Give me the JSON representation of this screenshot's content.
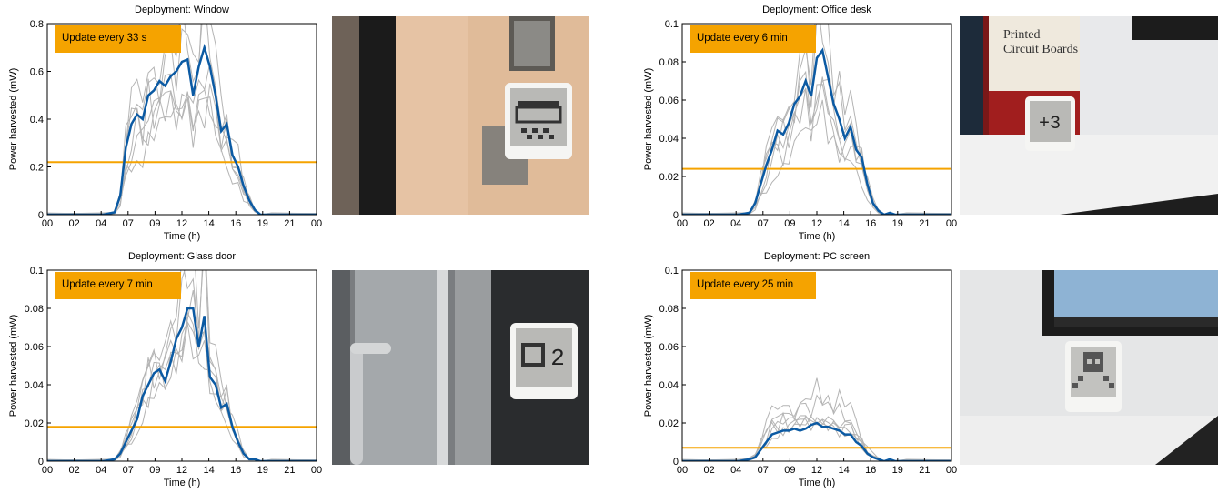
{
  "colors": {
    "mean": "#0b5aa3",
    "thin": "#b4b4b4",
    "threshold": "#f5a300",
    "box": "#f5a300"
  },
  "chart_data": [
    {
      "type": "line",
      "title": "Deployment: Window",
      "xlabel": "Time (h)",
      "ylabel": "Power harvested (mW)",
      "xlim": [
        0,
        24
      ],
      "ylim": [
        0,
        0.8
      ],
      "xticklabels": [
        "00",
        "02",
        "04",
        "07",
        "09",
        "12",
        "14",
        "16",
        "19",
        "21",
        "00"
      ],
      "yticks": [
        0,
        0.2,
        0.4,
        0.6,
        0.8
      ],
      "yticklabels": [
        "0",
        "0.2",
        "0.4",
        "0.6",
        "0.8"
      ],
      "annotation": "Update every 33 s",
      "threshold": 0.22,
      "series": [
        {
          "x": [
            0,
            5,
            6,
            6.5,
            7,
            7.5,
            8,
            8.5,
            9,
            9.5,
            10,
            10.5,
            11,
            11.5,
            12,
            12.5,
            13,
            13.5,
            14,
            14.5,
            15,
            15.5,
            16,
            16.5,
            17,
            17.5,
            18,
            18.5,
            19,
            20,
            24
          ],
          "y": [
            0,
            0,
            0.01,
            0.08,
            0.28,
            0.38,
            0.42,
            0.4,
            0.5,
            0.52,
            0.56,
            0.54,
            0.58,
            0.6,
            0.64,
            0.65,
            0.5,
            0.62,
            0.7,
            0.62,
            0.5,
            0.35,
            0.38,
            0.25,
            0.2,
            0.12,
            0.06,
            0.02,
            0,
            0,
            0
          ]
        }
      ],
      "grey_peaks": [
        0.82,
        0.74,
        0.66,
        0.58,
        0.5,
        0.44
      ]
    },
    {
      "type": "line",
      "title": "Deployment: Office desk",
      "xlabel": "Time (h)",
      "ylabel": "Power harvested (mW)",
      "xlim": [
        0,
        24
      ],
      "ylim": [
        0,
        0.1
      ],
      "xticklabels": [
        "00",
        "02",
        "04",
        "07",
        "09",
        "12",
        "14",
        "16",
        "19",
        "21",
        "00"
      ],
      "yticks": [
        0,
        0.02,
        0.04,
        0.06,
        0.08,
        0.1
      ],
      "yticklabels": [
        "0",
        "0.02",
        "0.04",
        "0.06",
        "0.08",
        "0.1"
      ],
      "annotation": "Update every 6 min",
      "threshold": 0.024,
      "series": [
        {
          "x": [
            0,
            5,
            6,
            6.5,
            7,
            7.5,
            8,
            8.5,
            9,
            9.5,
            10,
            10.5,
            11,
            11.5,
            12,
            12.5,
            13,
            13.5,
            14,
            14.5,
            15,
            15.5,
            16,
            16.5,
            17,
            17.5,
            18,
            18.5,
            19,
            20,
            24
          ],
          "y": [
            0,
            0,
            0.001,
            0.006,
            0.016,
            0.026,
            0.034,
            0.044,
            0.042,
            0.048,
            0.058,
            0.062,
            0.07,
            0.062,
            0.082,
            0.086,
            0.072,
            0.058,
            0.05,
            0.04,
            0.046,
            0.034,
            0.03,
            0.016,
            0.006,
            0.002,
            0,
            0.001,
            0,
            0,
            0
          ]
        }
      ],
      "grey_peaks": [
        0.1,
        0.095,
        0.085,
        0.075,
        0.065,
        0.05
      ]
    },
    {
      "type": "line",
      "title": "Deployment: Glass door",
      "xlabel": "Time (h)",
      "ylabel": "Power harvested (mW)",
      "xlim": [
        0,
        24
      ],
      "ylim": [
        0,
        0.1
      ],
      "xticklabels": [
        "00",
        "02",
        "04",
        "07",
        "09",
        "12",
        "14",
        "16",
        "19",
        "21",
        "00"
      ],
      "yticks": [
        0,
        0.02,
        0.04,
        0.06,
        0.08,
        0.1
      ],
      "yticklabels": [
        "0",
        "0.02",
        "0.04",
        "0.06",
        "0.08",
        "0.1"
      ],
      "annotation": "Update every 7 min",
      "threshold": 0.018,
      "series": [
        {
          "x": [
            0,
            5,
            6,
            6.5,
            7,
            7.5,
            8,
            8.5,
            9,
            9.5,
            10,
            10.5,
            11,
            11.5,
            12,
            12.5,
            13,
            13.5,
            14,
            14.5,
            15,
            15.5,
            16,
            16.5,
            17,
            17.5,
            18,
            18.5,
            19,
            20,
            24
          ],
          "y": [
            0,
            0,
            0.001,
            0.004,
            0.01,
            0.016,
            0.022,
            0.034,
            0.04,
            0.046,
            0.048,
            0.042,
            0.052,
            0.064,
            0.07,
            0.08,
            0.08,
            0.06,
            0.076,
            0.044,
            0.04,
            0.028,
            0.03,
            0.018,
            0.01,
            0.004,
            0.001,
            0.001,
            0,
            0,
            0
          ]
        }
      ],
      "grey_peaks": [
        0.1,
        0.095,
        0.09,
        0.08,
        0.07,
        0.06
      ]
    },
    {
      "type": "line",
      "title": "Deployment: PC screen",
      "xlabel": "Time (h)",
      "ylabel": "Power harvested (mW)",
      "xlim": [
        0,
        24
      ],
      "ylim": [
        0,
        0.1
      ],
      "xticklabels": [
        "00",
        "02",
        "04",
        "07",
        "09",
        "12",
        "14",
        "16",
        "19",
        "21",
        "00"
      ],
      "yticks": [
        0,
        0.02,
        0.04,
        0.06,
        0.08,
        0.1
      ],
      "yticklabels": [
        "0",
        "0.02",
        "0.04",
        "0.06",
        "0.08",
        "0.1"
      ],
      "annotation": "Update every 25 min",
      "threshold": 0.007,
      "series": [
        {
          "x": [
            0,
            5,
            6,
            6.5,
            7,
            7.5,
            8,
            8.5,
            9,
            9.5,
            10,
            10.5,
            11,
            11.5,
            12,
            12.5,
            13,
            13.5,
            14,
            14.5,
            15,
            15.5,
            16,
            16.5,
            17,
            17.5,
            18,
            18.5,
            19,
            20,
            24
          ],
          "y": [
            0,
            0,
            0.001,
            0.002,
            0.006,
            0.01,
            0.014,
            0.015,
            0.016,
            0.016,
            0.017,
            0.016,
            0.017,
            0.019,
            0.02,
            0.018,
            0.018,
            0.017,
            0.016,
            0.014,
            0.014,
            0.01,
            0.008,
            0.004,
            0.002,
            0.001,
            0,
            0.001,
            0,
            0,
            0
          ]
        }
      ],
      "grey_peaks": [
        0.036,
        0.03,
        0.026,
        0.024,
        0.022,
        0.02
      ]
    }
  ]
}
